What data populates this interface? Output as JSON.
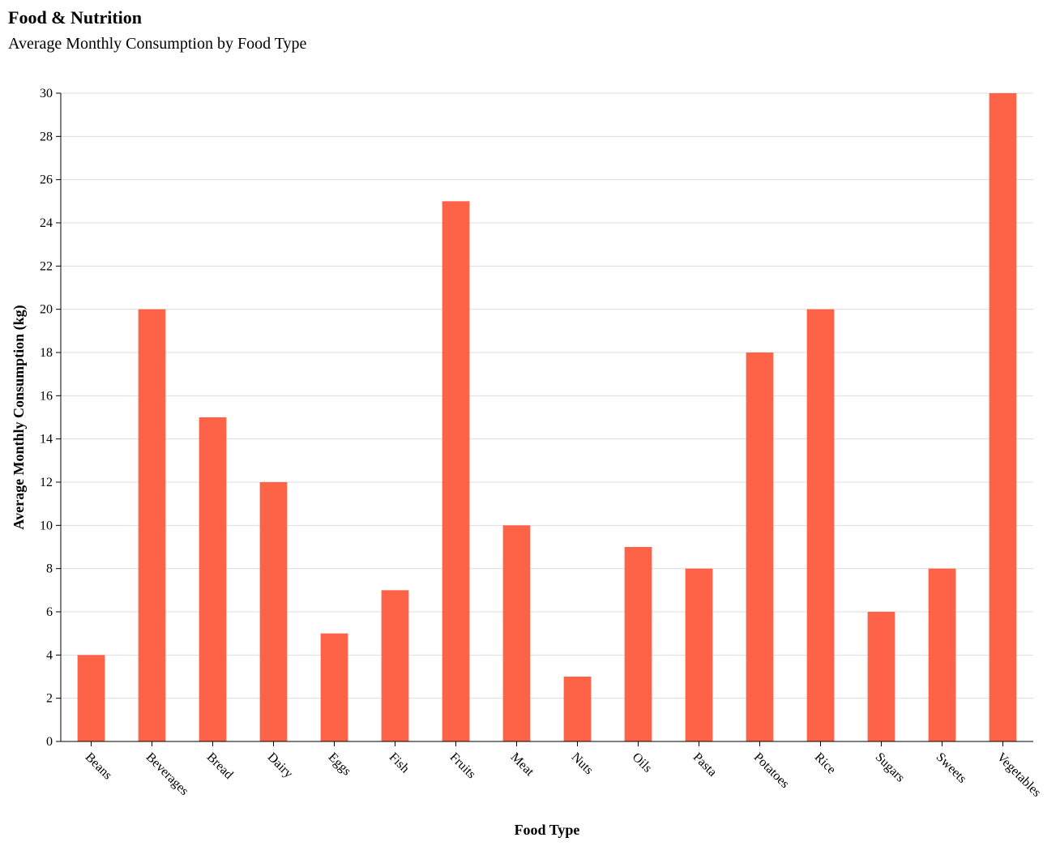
{
  "chart_data": {
    "type": "bar",
    "title": "Food & Nutrition",
    "subtitle": "Average Monthly Consumption by Food Type",
    "xlabel": "Food Type",
    "ylabel": "Average Monthly Consumption (kg)",
    "categories": [
      "Beans",
      "Beverages",
      "Bread",
      "Dairy",
      "Eggs",
      "Fish",
      "Fruits",
      "Meat",
      "Nuts",
      "Oils",
      "Pasta",
      "Potatoes",
      "Rice",
      "Sugars",
      "Sweets",
      "Vegetables"
    ],
    "values": [
      4,
      20,
      15,
      12,
      5,
      7,
      25,
      10,
      3,
      9,
      8,
      18,
      20,
      6,
      8,
      30
    ],
    "ylim": [
      0,
      30
    ],
    "yticks": [
      0,
      2,
      4,
      6,
      8,
      10,
      12,
      14,
      16,
      18,
      20,
      22,
      24,
      26,
      28,
      30
    ],
    "grid": true,
    "bar_color": "#ff6347",
    "grid_color": "#dddddd"
  }
}
